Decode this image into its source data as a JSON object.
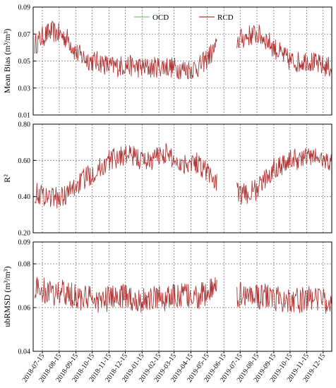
{
  "legend": {
    "items": [
      {
        "label": "OCD",
        "color": "#7ec87e"
      },
      {
        "label": "RCD",
        "color": "#b03a3a"
      }
    ]
  },
  "x_axis": {
    "start": "2018-06-28",
    "end": "2019-12-31",
    "gap": [
      "2019-06-02",
      "2019-07-09"
    ],
    "tick_labels": [
      "2018-07-15",
      "2018-08-15",
      "2018-09-15",
      "2018-10-15",
      "2018-11-15",
      "2018-12-15",
      "2019-01-15",
      "2019-02-15",
      "2019-03-15",
      "2019-04-15",
      "2019-05-15",
      "2019-06-15",
      "2019-07-15",
      "2019-08-15",
      "2019-09-15",
      "2019-10-15",
      "2019-11-15",
      "2019-12-15"
    ]
  },
  "chart_data": [
    {
      "type": "line",
      "ylabel": "Mean Bias (m³/m³)",
      "ylim": [
        0.01,
        0.09
      ],
      "yticks": [
        0.01,
        0.03,
        0.05,
        0.07,
        0.09
      ],
      "ytick_labels": [
        "0.01",
        "0.03",
        "0.05",
        "0.07",
        "0.09"
      ],
      "grid": true,
      "legend": "top-center",
      "series": [
        {
          "name": "OCD",
          "color": "#7ec87e",
          "note": "overlaps RCD"
        },
        {
          "name": "RCD",
          "color": "#b03a3a",
          "x": [
            "2018-07-01",
            "2018-07-15",
            "2018-08-01",
            "2018-08-15",
            "2018-09-01",
            "2018-09-15",
            "2018-10-01",
            "2018-10-15",
            "2018-11-01",
            "2018-11-15",
            "2018-12-01",
            "2018-12-15",
            "2019-01-01",
            "2019-01-15",
            "2019-02-01",
            "2019-02-15",
            "2019-03-01",
            "2019-03-15",
            "2019-04-01",
            "2019-04-15",
            "2019-05-01",
            "2019-05-15",
            "2019-06-01",
            "2019-07-10",
            "2019-07-15",
            "2019-08-01",
            "2019-08-15",
            "2019-09-01",
            "2019-09-15",
            "2019-10-01",
            "2019-10-15",
            "2019-11-01",
            "2019-11-15",
            "2019-12-01",
            "2019-12-15",
            "2019-12-31"
          ],
          "values": [
            0.062,
            0.068,
            0.072,
            0.07,
            0.066,
            0.056,
            0.052,
            0.05,
            0.049,
            0.046,
            0.046,
            0.047,
            0.046,
            0.045,
            0.045,
            0.046,
            0.046,
            0.045,
            0.044,
            0.044,
            0.046,
            0.052,
            0.06,
            0.065,
            0.066,
            0.069,
            0.07,
            0.066,
            0.06,
            0.054,
            0.05,
            0.049,
            0.051,
            0.048,
            0.046,
            0.045
          ],
          "noise": 0.008
        }
      ]
    },
    {
      "type": "line",
      "ylabel": "R²",
      "ylim": [
        0.2,
        0.8
      ],
      "yticks": [
        0.2,
        0.4,
        0.6,
        0.8
      ],
      "ytick_labels": [
        "0.20",
        "0.40",
        "0.60",
        "0.80"
      ],
      "grid": true,
      "series": [
        {
          "name": "OCD",
          "color": "#7ec87e",
          "note": "overlaps RCD"
        },
        {
          "name": "RCD",
          "color": "#b03a3a",
          "x": [
            "2018-07-01",
            "2018-07-15",
            "2018-08-01",
            "2018-08-15",
            "2018-09-01",
            "2018-09-15",
            "2018-10-01",
            "2018-10-15",
            "2018-11-01",
            "2018-11-15",
            "2018-12-01",
            "2018-12-15",
            "2019-01-01",
            "2019-01-15",
            "2019-02-01",
            "2019-02-15",
            "2019-03-01",
            "2019-03-15",
            "2019-04-01",
            "2019-04-15",
            "2019-05-01",
            "2019-05-15",
            "2019-06-01",
            "2019-07-10",
            "2019-07-15",
            "2019-08-01",
            "2019-08-15",
            "2019-09-01",
            "2019-09-15",
            "2019-10-01",
            "2019-10-15",
            "2019-11-01",
            "2019-11-15",
            "2019-12-01",
            "2019-12-15",
            "2019-12-31"
          ],
          "values": [
            0.42,
            0.41,
            0.4,
            0.39,
            0.42,
            0.46,
            0.5,
            0.53,
            0.56,
            0.6,
            0.62,
            0.63,
            0.62,
            0.6,
            0.6,
            0.63,
            0.64,
            0.6,
            0.58,
            0.6,
            0.58,
            0.54,
            0.48,
            0.42,
            0.41,
            0.42,
            0.44,
            0.5,
            0.56,
            0.58,
            0.6,
            0.61,
            0.62,
            0.62,
            0.6,
            0.59
          ],
          "noise": 0.06
        }
      ]
    },
    {
      "type": "line",
      "ylabel": "ubRMSD (m³/m³)",
      "ylim": [
        0.04,
        0.09
      ],
      "yticks": [
        0.04,
        0.06,
        0.08,
        0.09
      ],
      "ytick_labels": [
        "0.04",
        "0.06",
        "0.08",
        "0.09"
      ],
      "grid": true,
      "series": [
        {
          "name": "OCD",
          "color": "#7ec87e",
          "note": "overlaps RCD"
        },
        {
          "name": "RCD",
          "color": "#b03a3a",
          "x": [
            "2018-07-01",
            "2018-07-15",
            "2018-08-01",
            "2018-08-15",
            "2018-09-01",
            "2018-09-15",
            "2018-10-01",
            "2018-10-15",
            "2018-11-01",
            "2018-11-15",
            "2018-12-01",
            "2018-12-15",
            "2019-01-01",
            "2019-01-15",
            "2019-02-01",
            "2019-02-15",
            "2019-03-01",
            "2019-03-15",
            "2019-04-01",
            "2019-04-15",
            "2019-05-01",
            "2019-05-15",
            "2019-06-01",
            "2019-07-10",
            "2019-07-15",
            "2019-08-01",
            "2019-08-15",
            "2019-09-01",
            "2019-09-15",
            "2019-10-01",
            "2019-10-15",
            "2019-11-01",
            "2019-11-15",
            "2019-12-01",
            "2019-12-15",
            "2019-12-31"
          ],
          "values": [
            0.069,
            0.068,
            0.066,
            0.067,
            0.066,
            0.065,
            0.064,
            0.064,
            0.063,
            0.064,
            0.065,
            0.065,
            0.064,
            0.063,
            0.064,
            0.065,
            0.064,
            0.065,
            0.066,
            0.064,
            0.065,
            0.067,
            0.068,
            0.066,
            0.066,
            0.066,
            0.065,
            0.065,
            0.064,
            0.064,
            0.064,
            0.063,
            0.064,
            0.064,
            0.063,
            0.064
          ],
          "noise": 0.006
        }
      ]
    }
  ]
}
